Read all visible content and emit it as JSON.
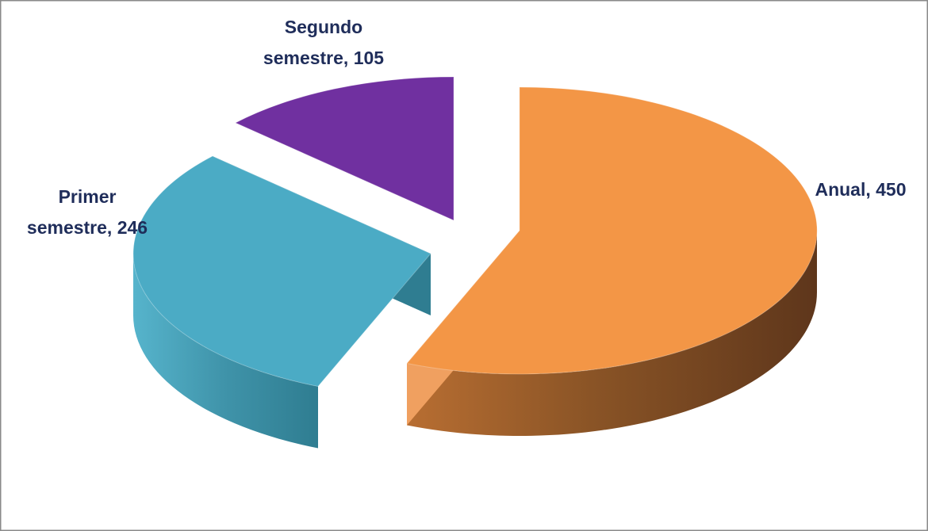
{
  "chart_data": {
    "type": "pie",
    "title": "",
    "categories": [
      "Anual",
      "Primer semestre",
      "Segundo semestre"
    ],
    "values": [
      450,
      246,
      105
    ],
    "labels": [
      [
        "Anual, 450"
      ],
      [
        "Primer",
        "semestre, 246"
      ],
      [
        "Segundo",
        "semestre, 105"
      ]
    ],
    "style": "3d-exploded",
    "legend": "none",
    "colors": {
      "anual_top": "#f39646",
      "anual_side_light": "#b86e32",
      "anual_side_dark": "#5e361b",
      "primer_top": "#4babc5",
      "primer_side_light": "#56b4cc",
      "primer_side_dark": "#2f7d91",
      "segundo_top": "#7030a0",
      "segundo_side": "#2a1240",
      "label": "#1f2d5a",
      "frame": "#8a8a8a"
    }
  }
}
